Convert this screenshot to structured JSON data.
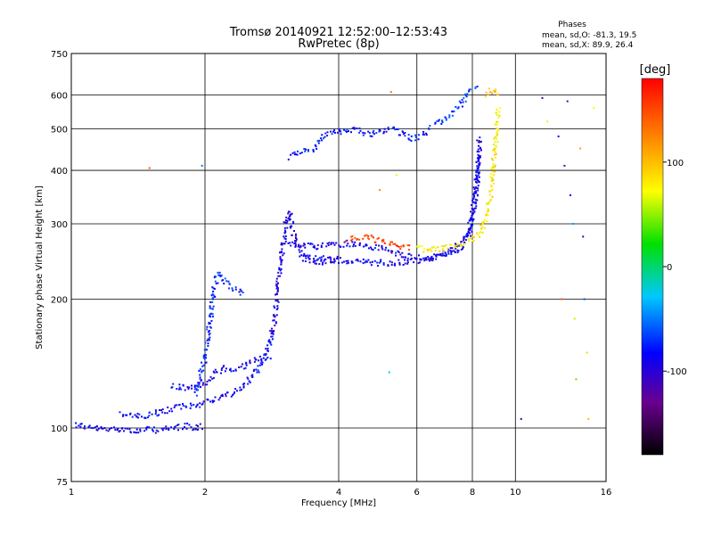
{
  "chart_data": {
    "type": "scatter",
    "title": "Tromsø 20140921 12:52:00–12:53:43",
    "subtitle": "RwPretec (8p)",
    "info": {
      "heading": "Phases",
      "line1": "mean, sd,O: -81.3, 19.5",
      "line2": "mean, sd,X:  89.9, 26.4"
    },
    "xlabel": "Frequency [MHz]",
    "ylabel": "Stationary phase Virtual Height [km]",
    "x_scale": "log",
    "y_scale": "log",
    "xlim": [
      1,
      16
    ],
    "ylim": [
      75,
      750
    ],
    "x_ticks": [
      1,
      2,
      4,
      6,
      8,
      10,
      16
    ],
    "x_tick_labels": [
      "1",
      "2",
      "4",
      "6",
      "8",
      "10",
      "16"
    ],
    "y_ticks": [
      75,
      100,
      200,
      300,
      400,
      500,
      600,
      750
    ],
    "y_tick_labels": [
      "75",
      "100",
      "200",
      "300",
      "400",
      "500",
      "600",
      "750"
    ],
    "grid": true,
    "colorbar": {
      "label": "[deg]",
      "range": [
        -180,
        180
      ],
      "ticks": [
        -100,
        0,
        100
      ],
      "tick_labels": [
        "-100",
        "0",
        "100"
      ]
    },
    "traces": [
      {
        "phase": -90,
        "x": [
          1.02,
          1.1,
          1.2,
          1.3,
          1.4,
          1.5,
          1.6,
          1.7,
          1.8,
          1.9,
          1.98
        ],
        "y": [
          102,
          100,
          99,
          100,
          98,
          99,
          99,
          100,
          101,
          100,
          101
        ]
      },
      {
        "phase": -85,
        "x": [
          1.3,
          1.45,
          1.6,
          1.75,
          1.9,
          2.0,
          2.15,
          2.3,
          2.45,
          2.6,
          2.75,
          2.85
        ],
        "y": [
          108,
          106,
          109,
          112,
          113,
          115,
          118,
          120,
          126,
          135,
          150,
          170
        ]
      },
      {
        "phase": -90,
        "x": [
          1.68,
          1.8,
          1.95,
          2.05,
          2.2,
          2.35,
          2.5,
          2.65,
          2.8
        ],
        "y": [
          125,
          124,
          125,
          130,
          138,
          136,
          142,
          145,
          148
        ]
      },
      {
        "phase": -75,
        "x": [
          1.9,
          2.0,
          2.05,
          2.1,
          2.15,
          2.25,
          2.35,
          2.45
        ],
        "y": [
          120,
          145,
          175,
          215,
          230,
          215,
          210,
          205
        ]
      },
      {
        "phase": -95,
        "x": [
          2.85,
          2.9,
          2.95,
          3.0,
          3.05,
          3.1,
          3.15,
          3.25,
          3.4,
          3.6,
          3.8,
          4.0
        ],
        "y": [
          165,
          200,
          240,
          270,
          300,
          320,
          290,
          260,
          248,
          244,
          246,
          248
        ]
      },
      {
        "phase": -90,
        "x": [
          3.05,
          3.2,
          3.5,
          3.8,
          4.2,
          4.6,
          5.0,
          5.5,
          6.0,
          6.5,
          7.0,
          7.5,
          7.9,
          8.1,
          8.3
        ],
        "y": [
          275,
          268,
          265,
          268,
          270,
          266,
          262,
          255,
          250,
          250,
          254,
          262,
          285,
          340,
          450
        ]
      },
      {
        "phase": -90,
        "x": [
          3.3,
          3.8,
          4.2,
          4.6,
          5.0,
          5.5,
          6.0,
          6.5,
          7.0,
          7.5,
          7.8,
          8.05,
          8.2,
          8.3
        ],
        "y": [
          250,
          248,
          246,
          244,
          243,
          244,
          246,
          250,
          258,
          270,
          285,
          320,
          380,
          480
        ]
      },
      {
        "phase": -80,
        "x": [
          3.1,
          3.5,
          3.7,
          3.9,
          4.1,
          4.3,
          4.5,
          4.7,
          4.9,
          5.1,
          5.3,
          5.5,
          5.7,
          5.9,
          6.1,
          6.3,
          6.5
        ],
        "y": [
          430,
          450,
          480,
          490,
          495,
          500,
          495,
          485,
          490,
          495,
          500,
          490,
          480,
          475,
          480,
          490,
          505
        ]
      },
      {
        "phase": -70,
        "x": [
          6.6,
          6.8,
          7.0,
          7.2,
          7.4,
          7.6,
          7.8,
          8.0,
          8.2
        ],
        "y": [
          510,
          520,
          530,
          545,
          560,
          580,
          600,
          620,
          630
        ]
      },
      {
        "phase": 150,
        "x": [
          4.2,
          4.4,
          4.6,
          4.8,
          5.0,
          5.2,
          5.4,
          5.6,
          5.8
        ],
        "y": [
          275,
          278,
          280,
          276,
          272,
          270,
          268,
          266,
          265
        ]
      },
      {
        "phase": 80,
        "x": [
          6.0,
          6.5,
          7.0,
          7.5,
          8.0,
          8.3,
          8.5,
          8.7,
          8.85,
          8.95,
          9.05,
          9.15
        ],
        "y": [
          262,
          262,
          264,
          268,
          275,
          285,
          300,
          330,
          370,
          420,
          480,
          560
        ]
      },
      {
        "phase": 100,
        "x": [
          8.6,
          8.8,
          9.0,
          9.2
        ],
        "y": [
          600,
          615,
          610,
          590
        ]
      }
    ],
    "scatter_points": [
      {
        "x": 1.5,
        "y": 405,
        "phase": 140
      },
      {
        "x": 1.97,
        "y": 410,
        "phase": -50
      },
      {
        "x": 5.25,
        "y": 610,
        "phase": 130
      },
      {
        "x": 5.2,
        "y": 135,
        "phase": -30
      },
      {
        "x": 4.95,
        "y": 360,
        "phase": 120
      },
      {
        "x": 5.4,
        "y": 390,
        "phase": 80
      },
      {
        "x": 10.3,
        "y": 105,
        "phase": -110
      },
      {
        "x": 11.5,
        "y": 590,
        "phase": -120
      },
      {
        "x": 11.8,
        "y": 520,
        "phase": 80
      },
      {
        "x": 12.5,
        "y": 480,
        "phase": -80
      },
      {
        "x": 13.1,
        "y": 580,
        "phase": -120
      },
      {
        "x": 13.3,
        "y": 350,
        "phase": -90
      },
      {
        "x": 13.5,
        "y": 300,
        "phase": -40
      },
      {
        "x": 13.6,
        "y": 180,
        "phase": 60
      },
      {
        "x": 13.7,
        "y": 130,
        "phase": 40
      },
      {
        "x": 14.0,
        "y": 450,
        "phase": 110
      },
      {
        "x": 14.2,
        "y": 280,
        "phase": -100
      },
      {
        "x": 14.3,
        "y": 200,
        "phase": -60
      },
      {
        "x": 14.5,
        "y": 150,
        "phase": 90
      },
      {
        "x": 14.6,
        "y": 105,
        "phase": 100
      },
      {
        "x": 15.0,
        "y": 560,
        "phase": 70
      },
      {
        "x": 12.9,
        "y": 410,
        "phase": -120
      },
      {
        "x": 12.7,
        "y": 200,
        "phase": 140
      }
    ]
  }
}
